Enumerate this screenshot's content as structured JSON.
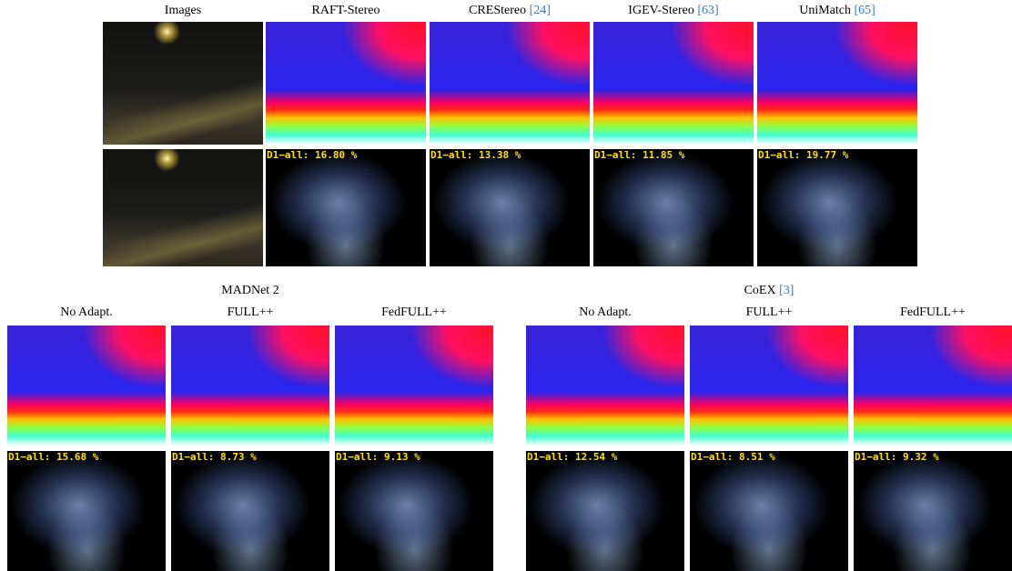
{
  "top": {
    "columns": [
      {
        "name": "Images"
      },
      {
        "name": "RAFT-Stereo",
        "error": "D1−all: 16.80 %"
      },
      {
        "name": "CREStereo",
        "ref": "[24]",
        "error": "D1−all: 13.38 %"
      },
      {
        "name": "IGEV-Stereo",
        "ref": "[63]",
        "error": "D1−all: 11.85 %"
      },
      {
        "name": "UniMatch",
        "ref": "[65]",
        "error": "D1−all: 19.77 %"
      }
    ]
  },
  "bottom": {
    "groups": [
      {
        "title": "MADNet 2",
        "columns": [
          {
            "name": "No Adapt.",
            "error": "D1−all: 15.68 %"
          },
          {
            "name": "FULL++",
            "error": "D1−all: 8.73 %"
          },
          {
            "name": "FedFULL++",
            "error": "D1−all: 9.13 %"
          }
        ]
      },
      {
        "title": "CoEX",
        "ref": "[3]",
        "columns": [
          {
            "name": "No Adapt.",
            "error": "D1−all: 12.54 %"
          },
          {
            "name": "FULL++",
            "error": "D1−all: 8.51 %"
          },
          {
            "name": "FedFULL++",
            "error": "D1−all: 9.32 %"
          }
        ]
      }
    ]
  }
}
